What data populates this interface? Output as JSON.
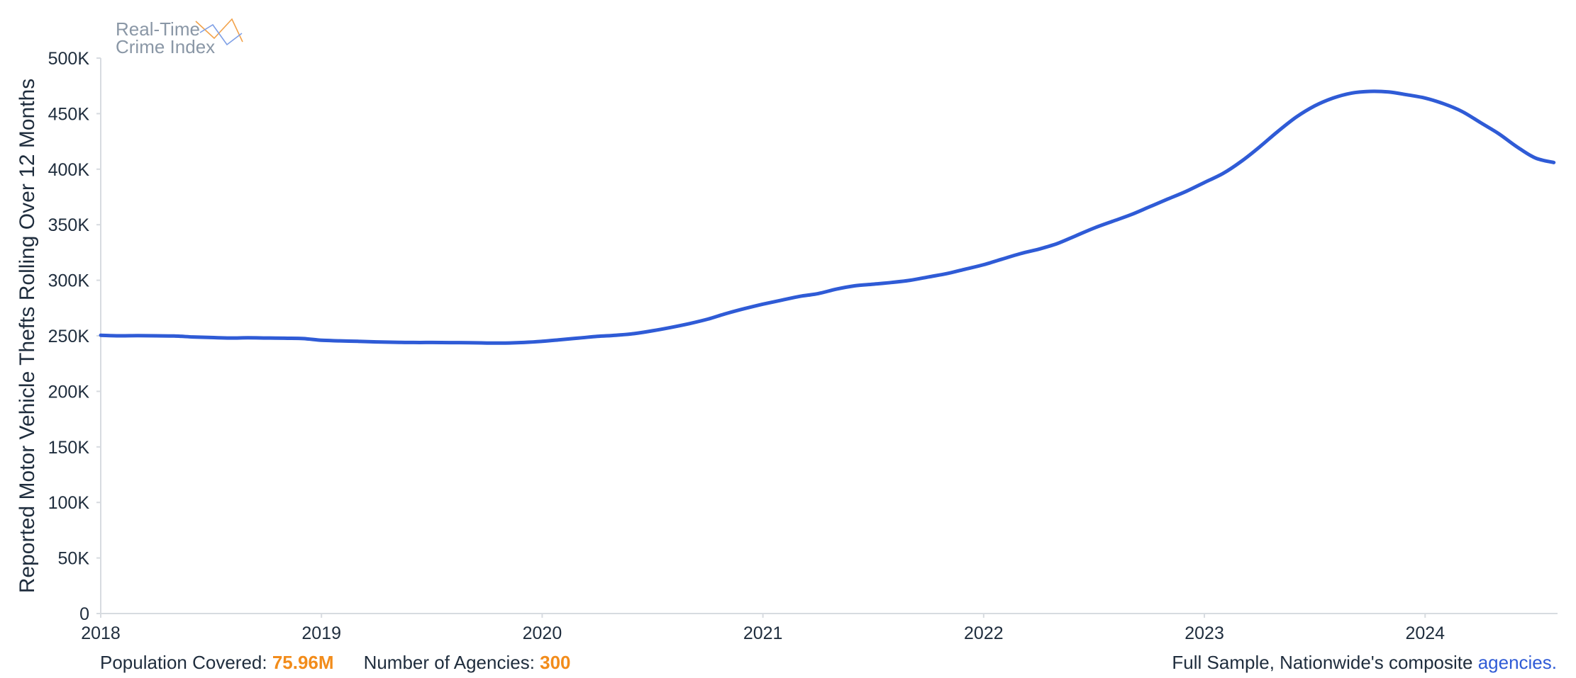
{
  "logo": {
    "line1": "Real-Time",
    "line2": "Crime Index"
  },
  "footer": {
    "population_label": "Population Covered: ",
    "population_value": "75.96M",
    "agencies_label": "Number of Agencies: ",
    "agencies_value": "300",
    "sample_text": "Full Sample, Nationwide's composite ",
    "link_text": "agencies."
  },
  "colors": {
    "line": "#2f5bd6",
    "accent": "#f28c1b",
    "axis": "#d7dbe0",
    "text": "#1f2d3d"
  },
  "chart_data": {
    "type": "line",
    "title": "",
    "xlabel": "",
    "ylabel": "Reported Motor Vehicle Thefts Rolling Over 12 Months",
    "ylim": [
      0,
      500000
    ],
    "xlim": [
      2018.0,
      2024.6
    ],
    "y_ticks": [
      0,
      50000,
      100000,
      150000,
      200000,
      250000,
      300000,
      350000,
      400000,
      450000,
      500000
    ],
    "y_tick_labels": [
      "0",
      "50K",
      "100K",
      "150K",
      "200K",
      "250K",
      "300K",
      "350K",
      "400K",
      "450K",
      "500K"
    ],
    "x_ticks": [
      2018,
      2019,
      2020,
      2021,
      2022,
      2023,
      2024
    ],
    "x_tick_labels": [
      "2018",
      "2019",
      "2020",
      "2021",
      "2022",
      "2023",
      "2024"
    ],
    "grid": false,
    "series": [
      {
        "x": [
          2018.0,
          2018.083,
          2018.167,
          2018.25,
          2018.333,
          2018.417,
          2018.5,
          2018.583,
          2018.667,
          2018.75,
          2018.833,
          2018.917,
          2019.0,
          2019.083,
          2019.167,
          2019.25,
          2019.333,
          2019.417,
          2019.5,
          2019.583,
          2019.667,
          2019.75,
          2019.833,
          2019.917,
          2020.0,
          2020.083,
          2020.167,
          2020.25,
          2020.333,
          2020.417,
          2020.5,
          2020.583,
          2020.667,
          2020.75,
          2020.833,
          2020.917,
          2021.0,
          2021.083,
          2021.167,
          2021.25,
          2021.333,
          2021.417,
          2021.5,
          2021.583,
          2021.667,
          2021.75,
          2021.833,
          2021.917,
          2022.0,
          2022.083,
          2022.167,
          2022.25,
          2022.333,
          2022.417,
          2022.5,
          2022.583,
          2022.667,
          2022.75,
          2022.833,
          2022.917,
          2023.0,
          2023.083,
          2023.167,
          2023.25,
          2023.333,
          2023.417,
          2023.5,
          2023.583,
          2023.667,
          2023.75,
          2023.833,
          2023.917,
          2024.0,
          2024.083,
          2024.167,
          2024.25,
          2024.333,
          2024.417,
          2024.5,
          2024.583
        ],
        "y": [
          250500,
          250000,
          250100,
          250000,
          249800,
          249000,
          248500,
          248000,
          248200,
          248000,
          247800,
          247500,
          246000,
          245500,
          245000,
          244500,
          244200,
          244000,
          244000,
          243900,
          243800,
          243500,
          243500,
          244000,
          245000,
          246500,
          248000,
          249500,
          250500,
          252000,
          254500,
          257500,
          261000,
          265000,
          270000,
          274500,
          278500,
          282000,
          285500,
          288000,
          292000,
          295000,
          296500,
          298000,
          300000,
          303000,
          306000,
          310000,
          314000,
          319000,
          324000,
          328000,
          333000,
          340000,
          347000,
          353000,
          359000,
          366000,
          373000,
          380000,
          388000,
          396000,
          407000,
          420000,
          434000,
          447000,
          457000,
          464000,
          468500,
          470000,
          469500,
          467000,
          464000,
          459000,
          452000,
          442000,
          432000,
          420000,
          410000,
          406000
        ]
      }
    ]
  }
}
